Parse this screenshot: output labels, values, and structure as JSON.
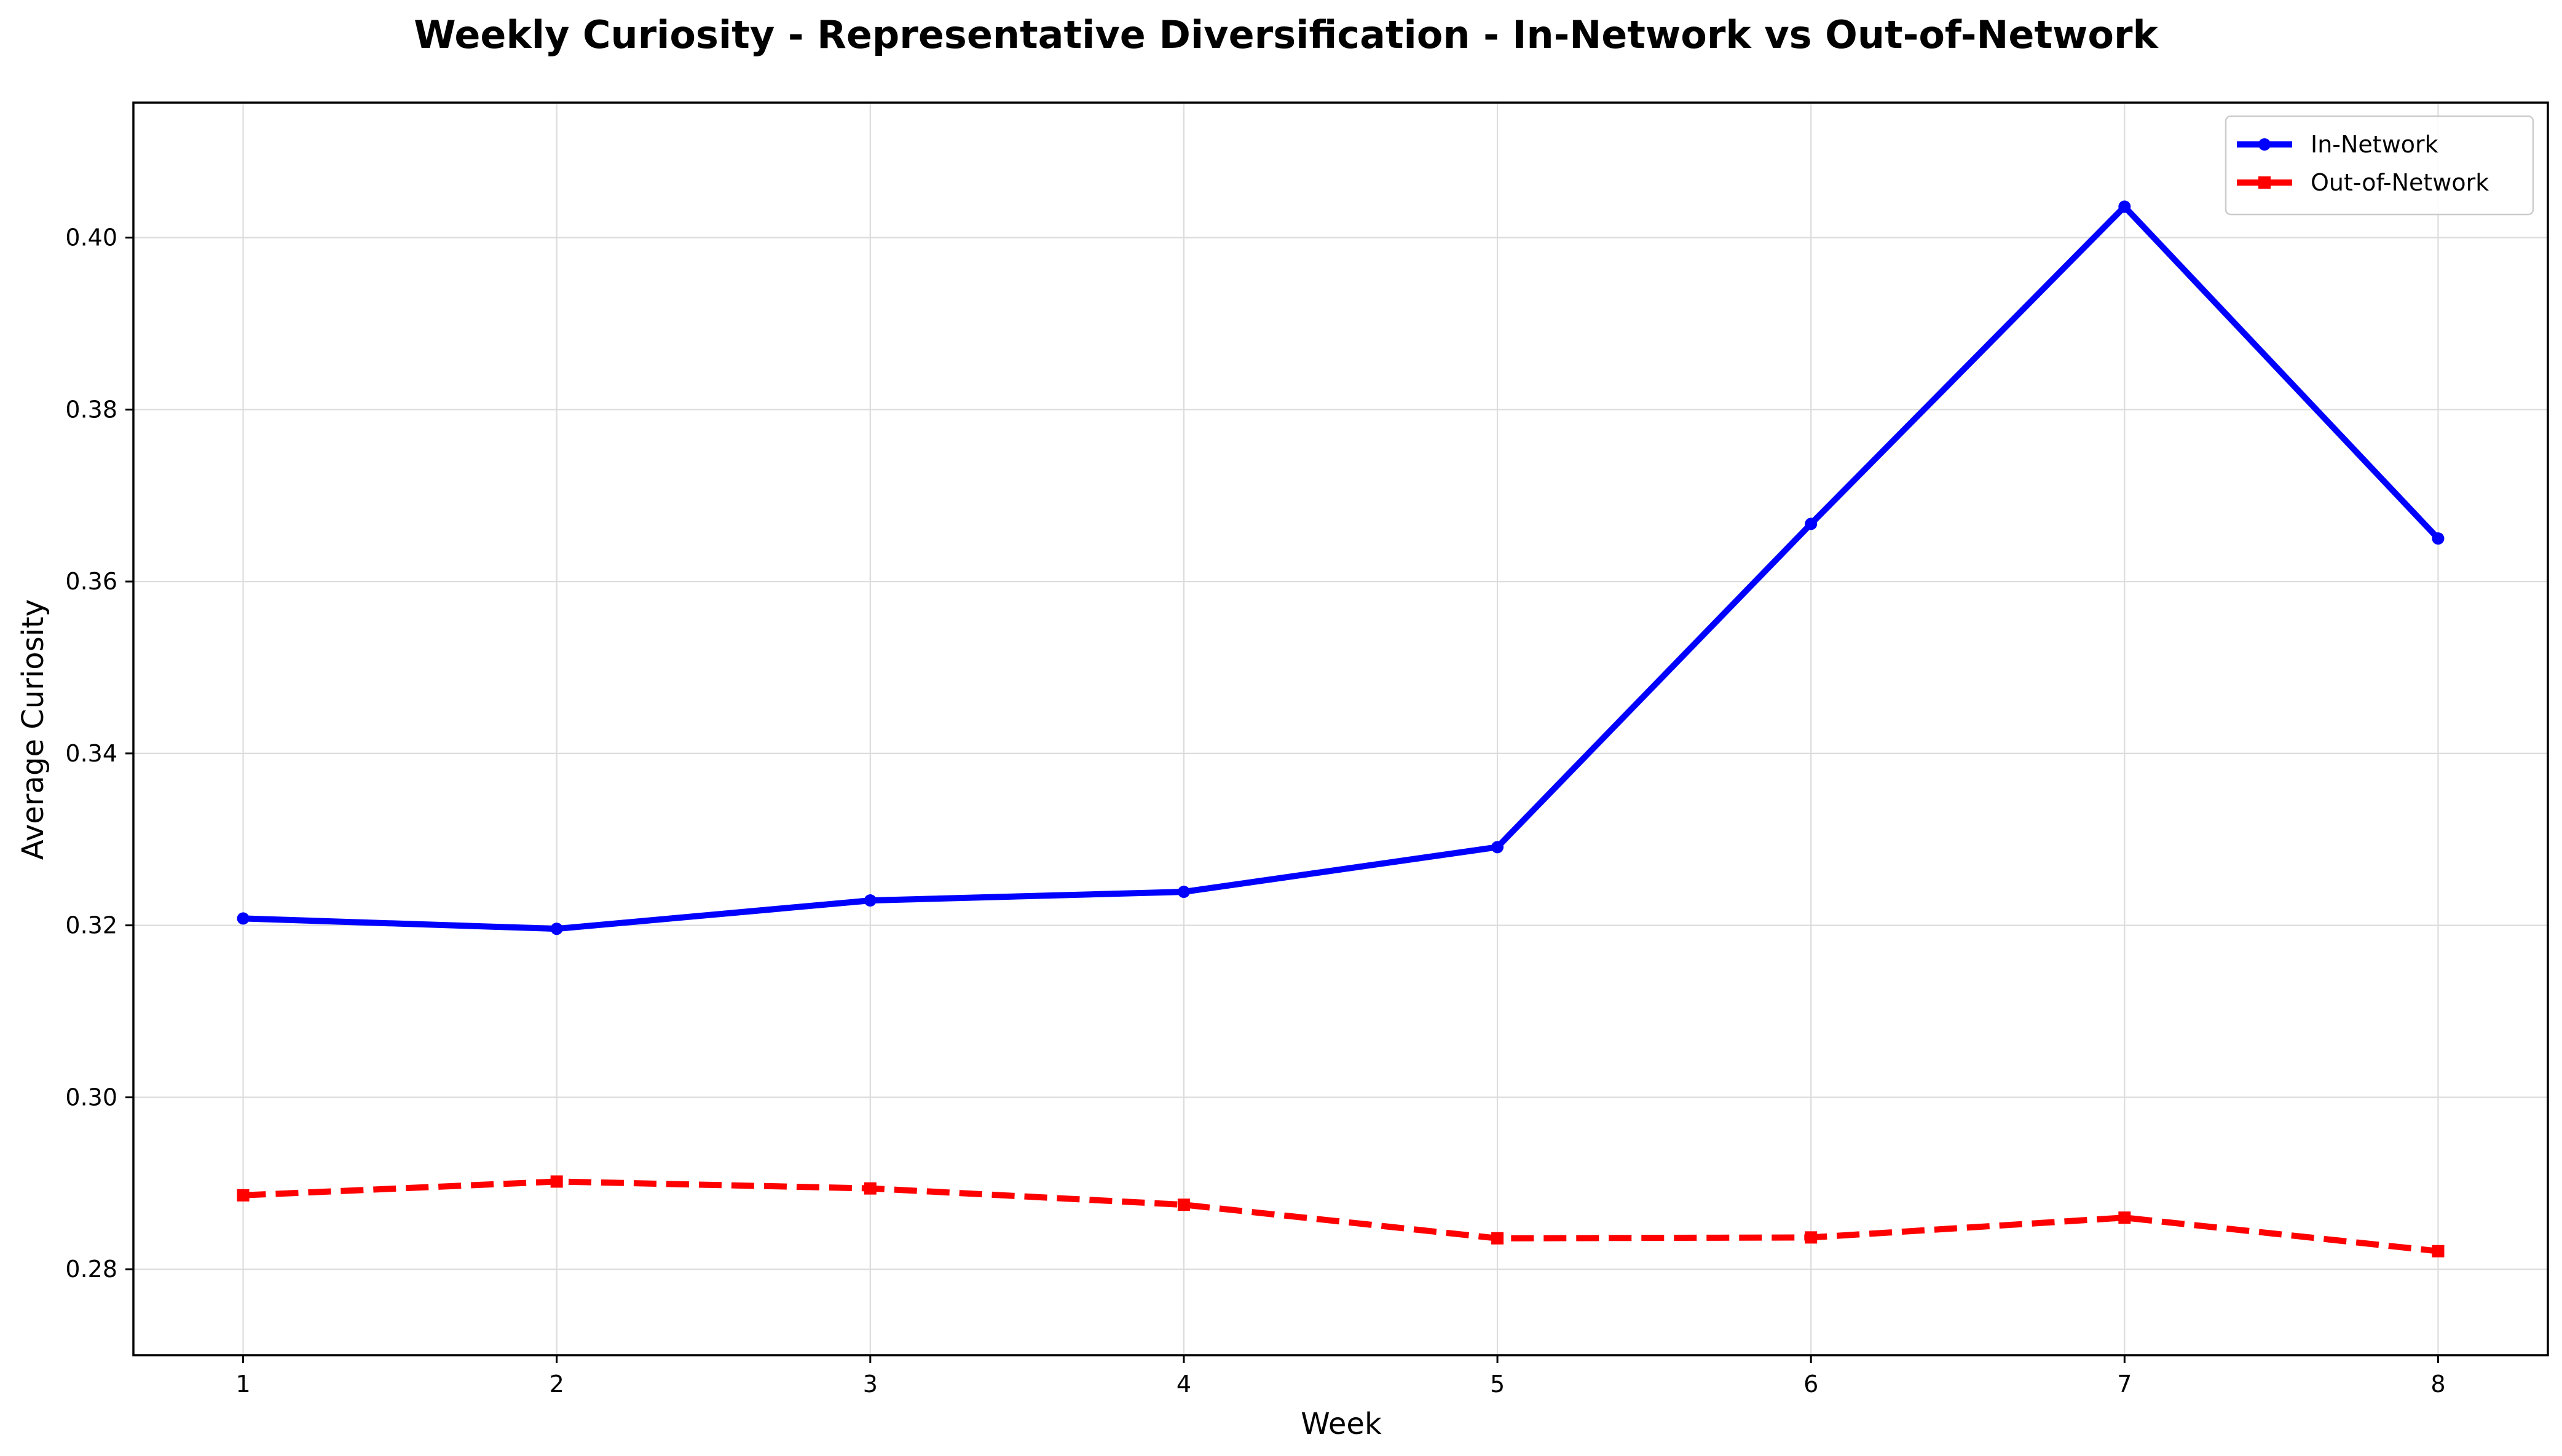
{
  "chart_data": {
    "type": "line",
    "title": "Weekly Curiosity - Representative Diversification - In-Network vs Out-of-Network",
    "xlabel": "Week",
    "ylabel": "Average Curiosity",
    "x": [
      1,
      2,
      3,
      4,
      5,
      6,
      7,
      8
    ],
    "xticks": [
      "1",
      "2",
      "3",
      "4",
      "5",
      "6",
      "7",
      "8"
    ],
    "xlim": [
      0.65,
      8.35
    ],
    "yticks": [
      "0.28",
      "0.30",
      "0.32",
      "0.34",
      "0.36",
      "0.38",
      "0.40"
    ],
    "ytick_values": [
      0.28,
      0.3,
      0.32,
      0.34,
      0.36,
      0.38,
      0.4
    ],
    "ylim": [
      0.27,
      0.4157
    ],
    "grid": true,
    "legend_position": "top-right",
    "series": [
      {
        "name": "In-Network",
        "color": "#0000ff",
        "line_style": "solid",
        "marker": "circle",
        "values": [
          0.3208,
          0.3196,
          0.3229,
          0.3239,
          0.3291,
          0.3667,
          0.4036,
          0.365
        ]
      },
      {
        "name": "Out-of-Network",
        "color": "#ff0000",
        "line_style": "dashed",
        "marker": "square",
        "values": [
          0.2886,
          0.2902,
          0.2894,
          0.2875,
          0.2836,
          0.2837,
          0.286,
          0.2821
        ]
      }
    ]
  }
}
